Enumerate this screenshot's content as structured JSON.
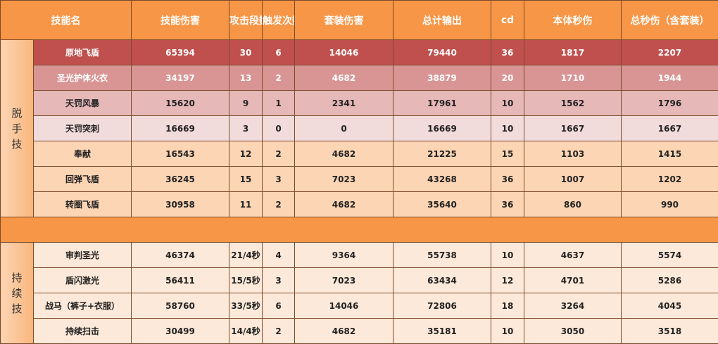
{
  "headers": [
    "技能名",
    "技能伤害",
    "攻击段数",
    "触发次数",
    "套装伤害",
    "总计输出",
    "cd",
    "本体秒伤",
    "总秒伤（含套装）"
  ],
  "groups": [
    {
      "label": "脱\n手\n技",
      "rows": [
        [
          "原地飞盾",
          "65394",
          "30",
          "6",
          "14046",
          "79440",
          "36",
          "1817",
          "2207"
        ],
        [
          "圣光护体火衣",
          "34197",
          "13",
          "2",
          "4682",
          "38879",
          "20",
          "1710",
          "1944"
        ],
        [
          "天罚风暴",
          "15620",
          "9",
          "1",
          "2341",
          "17961",
          "10",
          "1562",
          "1796"
        ],
        [
          "天罚突刺",
          "16669",
          "3",
          "0",
          "0",
          "16669",
          "10",
          "1667",
          "1667"
        ],
        [
          "奉献",
          "16543",
          "12",
          "2",
          "4682",
          "21225",
          "15",
          "1103",
          "1415"
        ],
        [
          "回弹飞盾",
          "36245",
          "15",
          "3",
          "7023",
          "43268",
          "36",
          "1007",
          "1202"
        ],
        [
          "转圈飞盾",
          "30958",
          "11",
          "2",
          "4682",
          "35640",
          "36",
          "860",
          "990"
        ]
      ]
    },
    {
      "label": "持\n续\n技",
      "rows": [
        [
          "审判圣光",
          "46374",
          "21/4秒",
          "4",
          "9364",
          "55738",
          "10",
          "4637",
          "5574"
        ],
        [
          "盾闪激光",
          "56411",
          "15/5秒",
          "3",
          "7023",
          "63434",
          "12",
          "4701",
          "5286"
        ],
        [
          "战马（裤子+衣服）",
          "58760",
          "33/5秒",
          "6",
          "14046",
          "72806",
          "18",
          "3264",
          "4045"
        ],
        [
          "持续扫击",
          "30499",
          "14/4秒",
          "2",
          "4682",
          "35181",
          "10",
          "3050",
          "3518"
        ]
      ]
    }
  ],
  "colors": {
    "header": "#f79646",
    "row_top": "#c0504d",
    "row_light": "#fde9d9"
  }
}
